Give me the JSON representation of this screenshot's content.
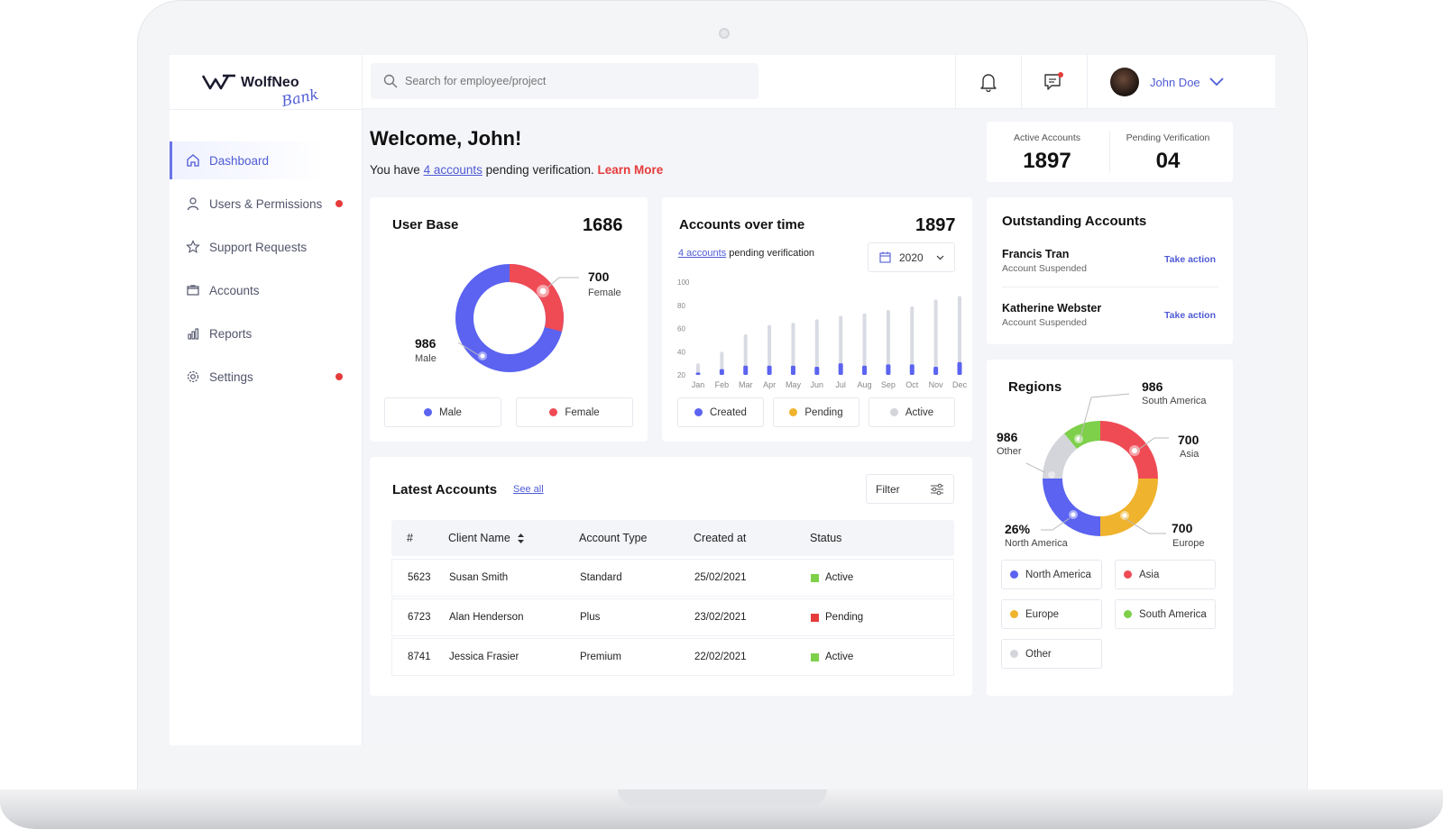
{
  "brand": {
    "name": "WolfNeo",
    "sub": "Bank"
  },
  "search": {
    "placeholder": "Search for employee/project"
  },
  "user": {
    "name": "John Doe"
  },
  "nav": [
    {
      "label": "Dashboard",
      "icon": "home-icon",
      "active": true,
      "dot": false
    },
    {
      "label": "Users & Permissions",
      "icon": "user-icon",
      "active": false,
      "dot": true
    },
    {
      "label": "Support Requests",
      "icon": "star-icon",
      "active": false,
      "dot": false
    },
    {
      "label": "Accounts",
      "icon": "folder-icon",
      "active": false,
      "dot": false
    },
    {
      "label": "Reports",
      "icon": "bar-chart-icon",
      "active": false,
      "dot": false
    },
    {
      "label": "Settings",
      "icon": "gear-icon",
      "active": false,
      "dot": true
    }
  ],
  "welcome": {
    "title": "Welcome, John!",
    "prefix": "You have",
    "link": "4 accounts",
    "suffix": "pending verification.",
    "learn_more": "Learn More"
  },
  "stats": {
    "active_label": "Active Accounts",
    "active_value": "1897",
    "pending_label": "Pending Verification",
    "pending_value": "04"
  },
  "user_base": {
    "title": "User Base",
    "total": "1686",
    "female_value": "700",
    "female_label": "Female",
    "male_value": "986",
    "male_label": "Male",
    "legend": [
      "Male",
      "Female"
    ]
  },
  "accounts_time": {
    "title": "Accounts over time",
    "total": "1897",
    "link": "4 accounts",
    "link_suffix": "pending verification",
    "year": "2020",
    "legend": [
      "Created",
      "Pending",
      "Active"
    ]
  },
  "chart_data": {
    "type": "bar",
    "categories": [
      "Jan",
      "Feb",
      "Mar",
      "Apr",
      "May",
      "Jun",
      "Jul",
      "Aug",
      "Sep",
      "Oct",
      "Nov",
      "Dec"
    ],
    "yticks": [
      "100",
      "80",
      "60",
      "40",
      "20"
    ],
    "ylim": [
      20,
      100
    ],
    "series": [
      {
        "name": "Created",
        "values": [
          22,
          25,
          28,
          28,
          28,
          27,
          30,
          28,
          29,
          29,
          27,
          31
        ]
      },
      {
        "name": "Active",
        "values": [
          30,
          40,
          55,
          63,
          65,
          68,
          71,
          73,
          76,
          79,
          85,
          88
        ]
      }
    ],
    "colors": {
      "created": "#5b63f0",
      "active": "#d9dbe3",
      "pending": "#f0b32e"
    }
  },
  "outstanding": {
    "title": "Outstanding Accounts",
    "items": [
      {
        "name": "Francis Tran",
        "status": "Account Suspended",
        "action": "Take action"
      },
      {
        "name": "Katherine Webster",
        "status": "Account Suspended",
        "action": "Take action"
      }
    ]
  },
  "latest": {
    "title": "Latest Accounts",
    "see_all": "See all",
    "filter": "Filter",
    "headers": [
      "#",
      "Client Name",
      "Account Type",
      "Created at",
      "Status"
    ],
    "rows": [
      {
        "id": "5623",
        "name": "Susan Smith",
        "type": "Standard",
        "created": "25/02/2021",
        "status": "Active",
        "color": "#7ed04b"
      },
      {
        "id": "6723",
        "name": "Alan Henderson",
        "type": "Plus",
        "created": "23/02/2021",
        "status": "Pending",
        "color": "#e53b3b"
      },
      {
        "id": "8741",
        "name": "Jessica Frasier",
        "type": "Premium",
        "created": "22/02/2021",
        "status": "Active",
        "color": "#7ed04b"
      }
    ]
  },
  "regions": {
    "title": "Regions",
    "south_america_value": "986",
    "south_america_label": "South America",
    "other_value": "986",
    "other_label": "Other",
    "asia_value": "700",
    "asia_label": "Asia",
    "north_america_value": "26%",
    "north_america_label": "North America",
    "europe_value": "700",
    "europe_label": "Europe",
    "legend": [
      {
        "label": "North America",
        "color": "#5b63f0"
      },
      {
        "label": "Asia",
        "color": "#ef4b55"
      },
      {
        "label": "Europe",
        "color": "#f0b32e"
      },
      {
        "label": "South America",
        "color": "#7ed04b"
      },
      {
        "label": "Other",
        "color": "#d3d5db"
      }
    ]
  }
}
